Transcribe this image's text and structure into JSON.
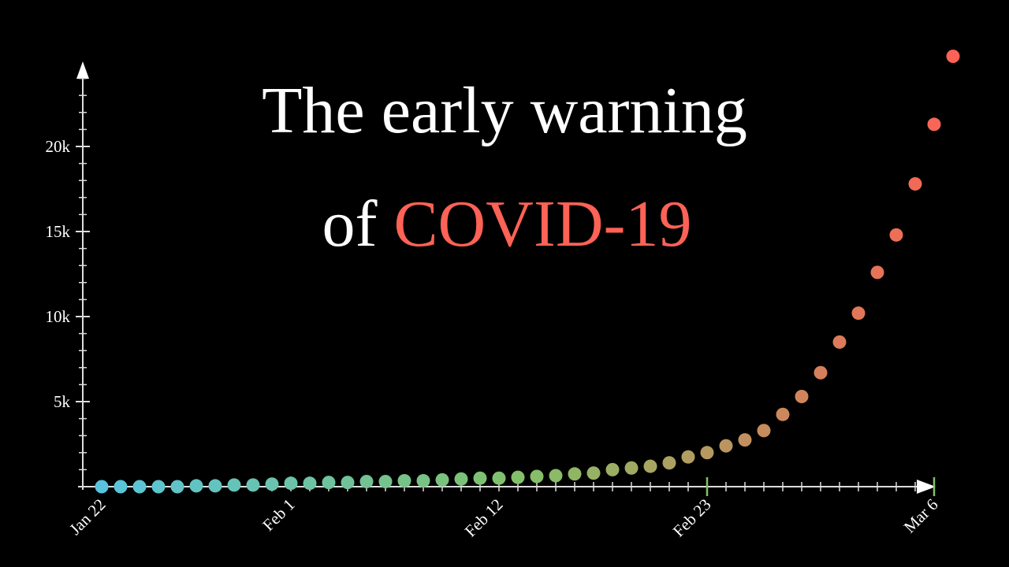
{
  "chart_data": {
    "type": "scatter",
    "title_parts": [
      "The early warning",
      "of",
      "COVID-19"
    ],
    "title_color": "#ffffff",
    "highlight_color": "#fc6255",
    "categories": [
      "Jan 22",
      null,
      null,
      null,
      null,
      null,
      null,
      null,
      null,
      null,
      "Feb 1",
      null,
      null,
      null,
      null,
      null,
      null,
      null,
      null,
      null,
      null,
      "Feb 12",
      null,
      null,
      null,
      null,
      null,
      null,
      null,
      null,
      null,
      null,
      "Feb 23",
      null,
      null,
      null,
      null,
      null,
      null,
      null,
      null,
      null,
      null,
      null,
      "Mar 6",
      null
    ],
    "highlighted_categories": [
      32,
      44
    ],
    "values": [
      0,
      0,
      0,
      0,
      0,
      50,
      50,
      100,
      100,
      150,
      200,
      200,
      250,
      250,
      300,
      300,
      350,
      350,
      400,
      450,
      500,
      500,
      550,
      600,
      650,
      750,
      800,
      1000,
      1100,
      1200,
      1400,
      1750,
      2000,
      2400,
      2750,
      3300,
      4250,
      5300,
      6700,
      8500,
      10200,
      12600,
      14800,
      17800,
      21300,
      25300
    ],
    "color_stops": [
      "#58c4dd",
      "#83c167",
      "#fc6255"
    ],
    "ylim": [
      0,
      25000
    ],
    "yticks": [
      {
        "value": 5000,
        "label": "5k"
      },
      {
        "value": 10000,
        "label": "10k"
      },
      {
        "value": 15000,
        "label": "15k"
      },
      {
        "value": 20000,
        "label": "20k"
      }
    ],
    "yminor_ticks": [
      1000,
      2000,
      3000,
      4000,
      6000,
      7000,
      8000,
      9000,
      11000,
      12000,
      13000,
      14000,
      16000,
      17000,
      18000,
      19000,
      21000,
      22000,
      23000,
      24000
    ],
    "axis_color": "#dddddd",
    "tick_highlight_color": "#83c167"
  }
}
